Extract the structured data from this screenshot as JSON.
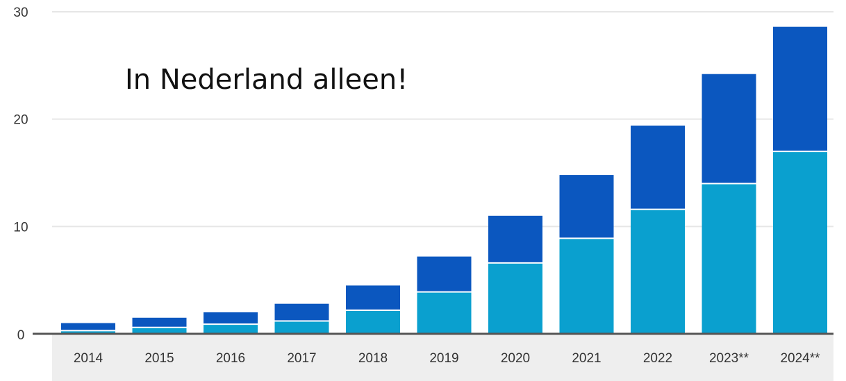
{
  "chart_data": {
    "type": "bar",
    "stacked": true,
    "title": "",
    "xlabel": "",
    "ylabel": "",
    "categories": [
      "2014",
      "2015",
      "2016",
      "2017",
      "2018",
      "2019",
      "2020",
      "2021",
      "2022",
      "2023**",
      "2024**"
    ],
    "series": [
      {
        "values": [
          0.3,
          0.6,
          0.9,
          1.2,
          2.2,
          3.9,
          6.6,
          8.9,
          11.6,
          14.0,
          17.0
        ],
        "color": "#0aa0cf"
      },
      {
        "values": [
          0.7,
          0.9,
          1.1,
          1.6,
          2.3,
          3.3,
          4.4,
          5.9,
          7.8,
          10.2,
          11.6
        ],
        "color": "#0b57bf"
      }
    ],
    "ylim": [
      0,
      30
    ],
    "yticks": [
      0,
      10,
      20,
      30
    ],
    "grid": true,
    "legend": "none",
    "annotation": "In Nederland alleen!"
  },
  "colors": {
    "grid": "#e6e6e6",
    "axis": "#555555",
    "xaxis_band": "#eeeeee",
    "tick_text": "#333333"
  }
}
